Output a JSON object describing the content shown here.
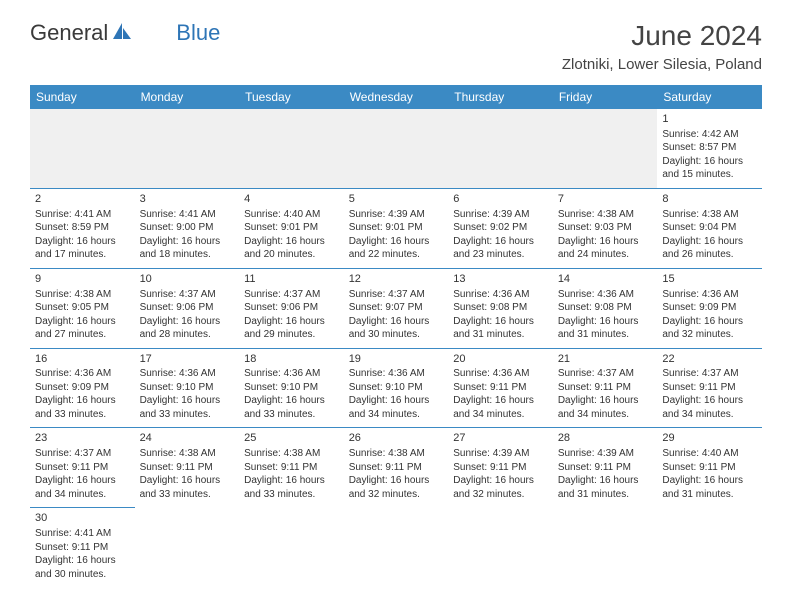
{
  "logo": {
    "text_general": "General",
    "text_blue": "Blue"
  },
  "title": "June 2024",
  "location": "Zlotniki, Lower Silesia, Poland",
  "colors": {
    "header_bg": "#3b8ac4",
    "header_text": "#ffffff",
    "border": "#3b8ac4",
    "empty_bg": "#f0f0f0",
    "text": "#333333",
    "logo_general": "#3a3a3a",
    "logo_blue": "#2e75b6"
  },
  "weekdays": [
    "Sunday",
    "Monday",
    "Tuesday",
    "Wednesday",
    "Thursday",
    "Friday",
    "Saturday"
  ],
  "weeks": [
    [
      null,
      null,
      null,
      null,
      null,
      null,
      {
        "day": "1",
        "sunrise": "Sunrise: 4:42 AM",
        "sunset": "Sunset: 8:57 PM",
        "daylight1": "Daylight: 16 hours",
        "daylight2": "and 15 minutes."
      }
    ],
    [
      {
        "day": "2",
        "sunrise": "Sunrise: 4:41 AM",
        "sunset": "Sunset: 8:59 PM",
        "daylight1": "Daylight: 16 hours",
        "daylight2": "and 17 minutes."
      },
      {
        "day": "3",
        "sunrise": "Sunrise: 4:41 AM",
        "sunset": "Sunset: 9:00 PM",
        "daylight1": "Daylight: 16 hours",
        "daylight2": "and 18 minutes."
      },
      {
        "day": "4",
        "sunrise": "Sunrise: 4:40 AM",
        "sunset": "Sunset: 9:01 PM",
        "daylight1": "Daylight: 16 hours",
        "daylight2": "and 20 minutes."
      },
      {
        "day": "5",
        "sunrise": "Sunrise: 4:39 AM",
        "sunset": "Sunset: 9:01 PM",
        "daylight1": "Daylight: 16 hours",
        "daylight2": "and 22 minutes."
      },
      {
        "day": "6",
        "sunrise": "Sunrise: 4:39 AM",
        "sunset": "Sunset: 9:02 PM",
        "daylight1": "Daylight: 16 hours",
        "daylight2": "and 23 minutes."
      },
      {
        "day": "7",
        "sunrise": "Sunrise: 4:38 AM",
        "sunset": "Sunset: 9:03 PM",
        "daylight1": "Daylight: 16 hours",
        "daylight2": "and 24 minutes."
      },
      {
        "day": "8",
        "sunrise": "Sunrise: 4:38 AM",
        "sunset": "Sunset: 9:04 PM",
        "daylight1": "Daylight: 16 hours",
        "daylight2": "and 26 minutes."
      }
    ],
    [
      {
        "day": "9",
        "sunrise": "Sunrise: 4:38 AM",
        "sunset": "Sunset: 9:05 PM",
        "daylight1": "Daylight: 16 hours",
        "daylight2": "and 27 minutes."
      },
      {
        "day": "10",
        "sunrise": "Sunrise: 4:37 AM",
        "sunset": "Sunset: 9:06 PM",
        "daylight1": "Daylight: 16 hours",
        "daylight2": "and 28 minutes."
      },
      {
        "day": "11",
        "sunrise": "Sunrise: 4:37 AM",
        "sunset": "Sunset: 9:06 PM",
        "daylight1": "Daylight: 16 hours",
        "daylight2": "and 29 minutes."
      },
      {
        "day": "12",
        "sunrise": "Sunrise: 4:37 AM",
        "sunset": "Sunset: 9:07 PM",
        "daylight1": "Daylight: 16 hours",
        "daylight2": "and 30 minutes."
      },
      {
        "day": "13",
        "sunrise": "Sunrise: 4:36 AM",
        "sunset": "Sunset: 9:08 PM",
        "daylight1": "Daylight: 16 hours",
        "daylight2": "and 31 minutes."
      },
      {
        "day": "14",
        "sunrise": "Sunrise: 4:36 AM",
        "sunset": "Sunset: 9:08 PM",
        "daylight1": "Daylight: 16 hours",
        "daylight2": "and 31 minutes."
      },
      {
        "day": "15",
        "sunrise": "Sunrise: 4:36 AM",
        "sunset": "Sunset: 9:09 PM",
        "daylight1": "Daylight: 16 hours",
        "daylight2": "and 32 minutes."
      }
    ],
    [
      {
        "day": "16",
        "sunrise": "Sunrise: 4:36 AM",
        "sunset": "Sunset: 9:09 PM",
        "daylight1": "Daylight: 16 hours",
        "daylight2": "and 33 minutes."
      },
      {
        "day": "17",
        "sunrise": "Sunrise: 4:36 AM",
        "sunset": "Sunset: 9:10 PM",
        "daylight1": "Daylight: 16 hours",
        "daylight2": "and 33 minutes."
      },
      {
        "day": "18",
        "sunrise": "Sunrise: 4:36 AM",
        "sunset": "Sunset: 9:10 PM",
        "daylight1": "Daylight: 16 hours",
        "daylight2": "and 33 minutes."
      },
      {
        "day": "19",
        "sunrise": "Sunrise: 4:36 AM",
        "sunset": "Sunset: 9:10 PM",
        "daylight1": "Daylight: 16 hours",
        "daylight2": "and 34 minutes."
      },
      {
        "day": "20",
        "sunrise": "Sunrise: 4:36 AM",
        "sunset": "Sunset: 9:11 PM",
        "daylight1": "Daylight: 16 hours",
        "daylight2": "and 34 minutes."
      },
      {
        "day": "21",
        "sunrise": "Sunrise: 4:37 AM",
        "sunset": "Sunset: 9:11 PM",
        "daylight1": "Daylight: 16 hours",
        "daylight2": "and 34 minutes."
      },
      {
        "day": "22",
        "sunrise": "Sunrise: 4:37 AM",
        "sunset": "Sunset: 9:11 PM",
        "daylight1": "Daylight: 16 hours",
        "daylight2": "and 34 minutes."
      }
    ],
    [
      {
        "day": "23",
        "sunrise": "Sunrise: 4:37 AM",
        "sunset": "Sunset: 9:11 PM",
        "daylight1": "Daylight: 16 hours",
        "daylight2": "and 34 minutes."
      },
      {
        "day": "24",
        "sunrise": "Sunrise: 4:38 AM",
        "sunset": "Sunset: 9:11 PM",
        "daylight1": "Daylight: 16 hours",
        "daylight2": "and 33 minutes."
      },
      {
        "day": "25",
        "sunrise": "Sunrise: 4:38 AM",
        "sunset": "Sunset: 9:11 PM",
        "daylight1": "Daylight: 16 hours",
        "daylight2": "and 33 minutes."
      },
      {
        "day": "26",
        "sunrise": "Sunrise: 4:38 AM",
        "sunset": "Sunset: 9:11 PM",
        "daylight1": "Daylight: 16 hours",
        "daylight2": "and 32 minutes."
      },
      {
        "day": "27",
        "sunrise": "Sunrise: 4:39 AM",
        "sunset": "Sunset: 9:11 PM",
        "daylight1": "Daylight: 16 hours",
        "daylight2": "and 32 minutes."
      },
      {
        "day": "28",
        "sunrise": "Sunrise: 4:39 AM",
        "sunset": "Sunset: 9:11 PM",
        "daylight1": "Daylight: 16 hours",
        "daylight2": "and 31 minutes."
      },
      {
        "day": "29",
        "sunrise": "Sunrise: 4:40 AM",
        "sunset": "Sunset: 9:11 PM",
        "daylight1": "Daylight: 16 hours",
        "daylight2": "and 31 minutes."
      }
    ],
    [
      {
        "day": "30",
        "sunrise": "Sunrise: 4:41 AM",
        "sunset": "Sunset: 9:11 PM",
        "daylight1": "Daylight: 16 hours",
        "daylight2": "and 30 minutes."
      },
      null,
      null,
      null,
      null,
      null,
      null
    ]
  ]
}
